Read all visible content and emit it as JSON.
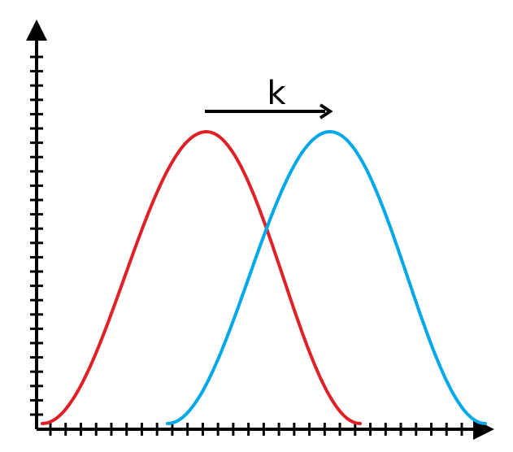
{
  "diagram": {
    "shift_label": "k",
    "colors": {
      "axis": "#000000",
      "curve_original": "#e02027",
      "curve_shifted": "#00a8e8",
      "arrow": "#000000"
    },
    "x_axis_ticks": 28,
    "y_axis_ticks": 26
  }
}
